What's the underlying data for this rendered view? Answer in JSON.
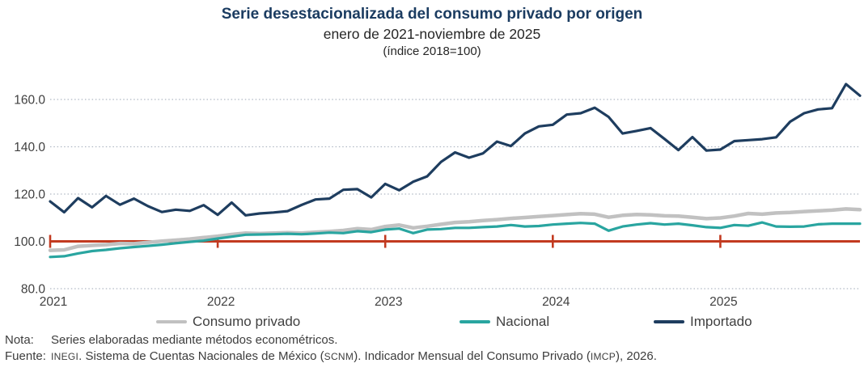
{
  "header": {
    "title": "Serie desestacionalizada del consumo privado por origen",
    "subtitle": "enero de 2021-noviembre de 2025",
    "unit_note": "(índice 2018=100)"
  },
  "footnotes": {
    "nota_label": "Nota:",
    "nota_text": "Series elaboradas mediante métodos econométricos.",
    "fuente_label": "Fuente:",
    "fuente_parts": [
      {
        "text": "INEGI",
        "small_caps": true
      },
      {
        "text": ". Sistema de Cuentas Nacionales de México ("
      },
      {
        "text": "SCNM",
        "small_caps": true
      },
      {
        "text": "). Indicador Mensual del Consumo Privado ("
      },
      {
        "text": "IMCP",
        "small_caps": true
      },
      {
        "text": "), 2026."
      }
    ]
  },
  "colors": {
    "title": "#1b3c61",
    "axis_text": "#404040",
    "grid": "#b0b8c4",
    "baseline": "#c23a20"
  },
  "chart_data": {
    "type": "line",
    "title": "Serie desestacionalizada del consumo privado por origen",
    "subtitle": "enero de 2021-noviembre de 2025",
    "unit": "índice 2018=100",
    "x_frequency": "monthly",
    "x_start": "2021-01",
    "x_end": "2025-11",
    "x_tick_labels": [
      "2021",
      "2022",
      "2023",
      "2024",
      "2025"
    ],
    "y_ticks": [
      80,
      100,
      120,
      140,
      160
    ],
    "ylim": [
      78,
      170
    ],
    "grid": "dotted-horizontal",
    "legend_position": "bottom",
    "baseline": {
      "value": 100,
      "tick_every_year": true
    },
    "series": [
      {
        "name": "Consumo privado",
        "color": "#c1c1c1",
        "stroke_width": 4.5,
        "values": [
          96.2,
          96.4,
          97.9,
          98.3,
          98.6,
          99.1,
          99.0,
          99.6,
          100.1,
          100.5,
          101.0,
          101.6,
          102.2,
          102.9,
          103.5,
          103.3,
          103.5,
          103.7,
          103.5,
          103.9,
          104.2,
          104.6,
          105.4,
          105.0,
          106.3,
          106.9,
          105.7,
          106.4,
          107.2,
          108.0,
          108.3,
          108.8,
          109.2,
          109.7,
          110.1,
          110.5,
          110.9,
          111.3,
          111.7,
          111.5,
          110.2,
          111.0,
          111.4,
          111.2,
          110.8,
          110.7,
          110.2,
          109.6,
          109.9,
          110.7,
          111.8,
          111.5,
          112.0,
          112.2,
          112.6,
          112.9,
          113.2,
          113.7,
          113.4
        ]
      },
      {
        "name": "Nacional",
        "color": "#29a5a0",
        "stroke_width": 3.2,
        "values": [
          93.4,
          93.7,
          94.9,
          95.9,
          96.4,
          97.1,
          97.6,
          98.1,
          98.6,
          99.2,
          99.8,
          100.3,
          101.2,
          102.0,
          102.8,
          102.9,
          103.0,
          103.2,
          103.0,
          103.3,
          103.7,
          103.5,
          104.3,
          103.9,
          105.0,
          105.4,
          103.5,
          105.0,
          105.2,
          105.7,
          105.7,
          106.0,
          106.3,
          106.9,
          106.3,
          106.5,
          107.1,
          107.5,
          107.8,
          107.5,
          104.5,
          106.3,
          107.1,
          107.7,
          107.1,
          107.5,
          106.8,
          106.0,
          105.7,
          106.9,
          106.6,
          108.0,
          106.3,
          106.2,
          106.3,
          107.2,
          107.5,
          107.5,
          107.5
        ]
      },
      {
        "name": "Importado",
        "color": "#1e3d5f",
        "stroke_width": 3.2,
        "values": [
          116.9,
          112.3,
          118.3,
          114.4,
          119.2,
          115.5,
          118.1,
          114.9,
          112.4,
          113.4,
          112.9,
          115.3,
          111.2,
          116.4,
          111.0,
          111.8,
          112.2,
          112.8,
          115.4,
          117.7,
          118.1,
          121.8,
          122.1,
          118.6,
          124.3,
          121.6,
          125.2,
          127.5,
          133.6,
          137.6,
          135.4,
          137.2,
          142.2,
          140.3,
          145.6,
          148.6,
          149.3,
          153.6,
          154.2,
          156.5,
          152.6,
          145.6,
          146.7,
          147.9,
          143.3,
          138.6,
          144.1,
          138.4,
          138.8,
          142.4,
          142.8,
          143.2,
          144.0,
          150.6,
          154.2,
          155.8,
          156.3,
          166.5,
          161.6
        ]
      }
    ]
  }
}
